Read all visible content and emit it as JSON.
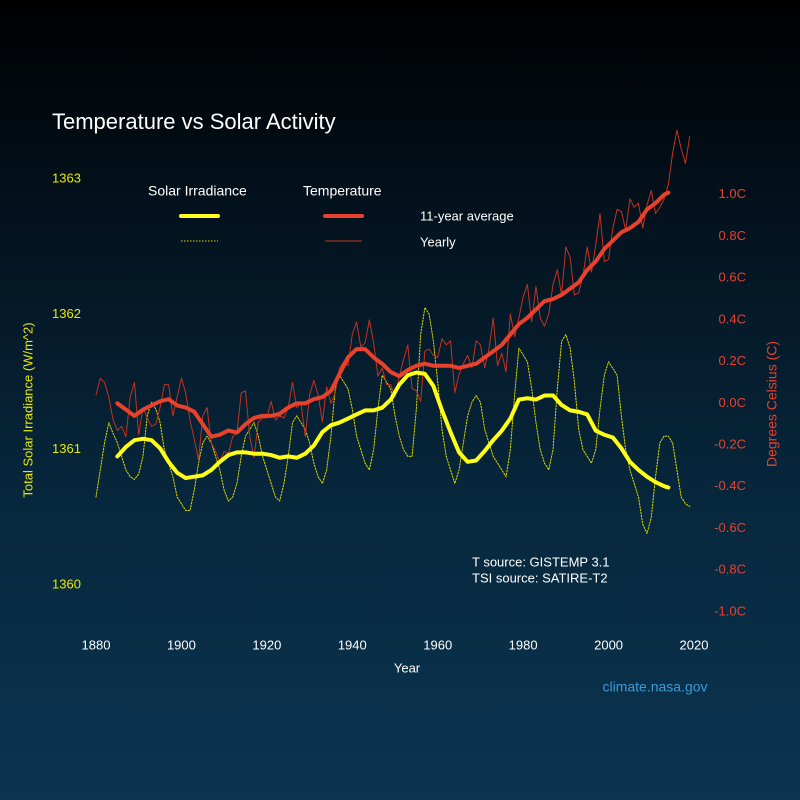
{
  "chart_data": {
    "type": "line",
    "title": "Temperature vs Solar Activity",
    "xlabel": "Year",
    "ylabel": "Total Solar Irradiance (W/m^2)",
    "y2label": "Degrees Celsius (C)",
    "annotations": [
      "T source: GISTEMP 3.1",
      "TSI source: SATIRE-T2",
      "climate.nasa.gov"
    ],
    "xlim": [
      1880,
      2020
    ],
    "xticks": [
      1880,
      1900,
      1920,
      1940,
      1960,
      1980,
      2000,
      2020
    ],
    "ylim": [
      1359.6,
      1363.3
    ],
    "yticks": [
      1360,
      1361,
      1362,
      1363
    ],
    "y2lim": [
      -1.13,
      1.27
    ],
    "y2ticks": [
      {
        "value": 1.0,
        "label": "1.0C"
      },
      {
        "value": 0.8,
        "label": "0.8C"
      },
      {
        "value": 0.6,
        "label": "0.6C"
      },
      {
        "value": 0.4,
        "label": "0.4C"
      },
      {
        "value": 0.2,
        "label": "0.2C"
      },
      {
        "value": 0.0,
        "label": "0.0C"
      },
      {
        "value": -0.2,
        "label": "-0.2C"
      },
      {
        "value": -0.4,
        "label": "-0.4C"
      },
      {
        "value": -0.6,
        "label": "-0.6C"
      },
      {
        "value": -0.8,
        "label": "-0.8C"
      },
      {
        "value": -1.0,
        "label": "-1.0C"
      }
    ],
    "ycolor": "#e8e800",
    "y2color": "#e8412c",
    "grid": false,
    "series": [
      {
        "name": "Solar Irradiance",
        "variant": "11-year average",
        "color": "#ffff1a",
        "width": 4,
        "dashed": false,
        "x": [
          1885,
          1887,
          1889,
          1891,
          1893,
          1895,
          1897,
          1899,
          1901,
          1903,
          1905,
          1907,
          1909,
          1911,
          1913,
          1915,
          1917,
          1919,
          1921,
          1923,
          1925,
          1927,
          1929,
          1931,
          1933,
          1935,
          1937,
          1939,
          1941,
          1943,
          1945,
          1947,
          1949,
          1951,
          1953,
          1955,
          1957,
          1959,
          1961,
          1963,
          1965,
          1967,
          1969,
          1971,
          1973,
          1975,
          1977,
          1979,
          1981,
          1983,
          1985,
          1987,
          1989,
          1991,
          1993,
          1995,
          1997,
          1999,
          2001,
          2003,
          2005,
          2007,
          2009,
          2011,
          2013,
          2014
        ],
        "values": [
          1360.95,
          1361.02,
          1361.07,
          1361.08,
          1361.07,
          1361.01,
          1360.91,
          1360.83,
          1360.79,
          1360.8,
          1360.81,
          1360.85,
          1360.91,
          1360.96,
          1360.98,
          1360.98,
          1360.97,
          1360.97,
          1360.96,
          1360.94,
          1360.95,
          1360.94,
          1360.97,
          1361.03,
          1361.13,
          1361.18,
          1361.2,
          1361.23,
          1361.26,
          1361.29,
          1361.29,
          1361.31,
          1361.37,
          1361.48,
          1361.55,
          1361.57,
          1361.56,
          1361.47,
          1361.29,
          1361.13,
          1360.98,
          1360.91,
          1360.92,
          1360.99,
          1361.07,
          1361.14,
          1361.23,
          1361.37,
          1361.38,
          1361.37,
          1361.4,
          1361.4,
          1361.33,
          1361.29,
          1361.28,
          1361.26,
          1361.14,
          1361.11,
          1361.09,
          1361.01,
          1360.91,
          1360.85,
          1360.8,
          1360.76,
          1360.73,
          1360.72
        ]
      },
      {
        "name": "Solar Irradiance",
        "variant": "Yearly",
        "color": "#d8d800",
        "width": 1,
        "dashed": true,
        "x": [
          1880,
          1881,
          1882,
          1883,
          1884,
          1885,
          1886,
          1887,
          1888,
          1889,
          1890,
          1891,
          1892,
          1893,
          1894,
          1895,
          1896,
          1897,
          1898,
          1899,
          1900,
          1901,
          1902,
          1903,
          1904,
          1905,
          1906,
          1907,
          1908,
          1909,
          1910,
          1911,
          1912,
          1913,
          1914,
          1915,
          1916,
          1917,
          1918,
          1919,
          1920,
          1921,
          1922,
          1923,
          1924,
          1925,
          1926,
          1927,
          1928,
          1929,
          1930,
          1931,
          1932,
          1933,
          1934,
          1935,
          1936,
          1937,
          1938,
          1939,
          1940,
          1941,
          1942,
          1943,
          1944,
          1945,
          1946,
          1947,
          1948,
          1949,
          1950,
          1951,
          1952,
          1953,
          1954,
          1955,
          1956,
          1957,
          1958,
          1959,
          1960,
          1961,
          1962,
          1963,
          1964,
          1965,
          1966,
          1967,
          1968,
          1969,
          1970,
          1971,
          1972,
          1973,
          1974,
          1975,
          1976,
          1977,
          1978,
          1979,
          1980,
          1981,
          1982,
          1983,
          1984,
          1985,
          1986,
          1987,
          1988,
          1989,
          1990,
          1991,
          1992,
          1993,
          1994,
          1995,
          1996,
          1997,
          1998,
          1999,
          2000,
          2001,
          2002,
          2003,
          2004,
          2005,
          2006,
          2007,
          2008,
          2009,
          2010,
          2011,
          2012,
          2013,
          2014,
          2015,
          2016,
          2017,
          2018,
          2019
        ],
        "values": [
          1360.65,
          1360.85,
          1361.05,
          1361.2,
          1361.12,
          1361.05,
          1360.95,
          1360.85,
          1360.8,
          1360.78,
          1360.82,
          1360.95,
          1361.25,
          1361.35,
          1361.3,
          1361.2,
          1361.0,
          1360.9,
          1360.8,
          1360.65,
          1360.6,
          1360.55,
          1360.55,
          1360.7,
          1360.9,
          1361.05,
          1361.1,
          1361.05,
          1360.95,
          1360.85,
          1360.7,
          1360.62,
          1360.65,
          1360.75,
          1360.95,
          1361.1,
          1361.15,
          1361.2,
          1361.1,
          1360.95,
          1360.85,
          1360.75,
          1360.65,
          1360.62,
          1360.75,
          1360.95,
          1361.2,
          1361.25,
          1361.2,
          1361.15,
          1361.05,
          1360.9,
          1360.8,
          1360.75,
          1360.85,
          1361.1,
          1361.45,
          1361.55,
          1361.5,
          1361.45,
          1361.3,
          1361.1,
          1361.0,
          1360.9,
          1360.85,
          1361.0,
          1361.3,
          1361.55,
          1361.5,
          1361.45,
          1361.25,
          1361.1,
          1361.0,
          1360.95,
          1360.95,
          1361.3,
          1361.85,
          1362.05,
          1362.0,
          1361.8,
          1361.5,
          1361.15,
          1360.95,
          1360.85,
          1360.75,
          1360.85,
          1361.05,
          1361.25,
          1361.35,
          1361.4,
          1361.35,
          1361.15,
          1361.05,
          1360.95,
          1360.9,
          1360.85,
          1360.8,
          1361.0,
          1361.4,
          1361.75,
          1361.7,
          1361.65,
          1361.45,
          1361.2,
          1361.0,
          1360.9,
          1360.85,
          1361.0,
          1361.45,
          1361.8,
          1361.85,
          1361.75,
          1361.5,
          1361.15,
          1361.0,
          1360.95,
          1360.9,
          1361.0,
          1361.3,
          1361.55,
          1361.65,
          1361.6,
          1361.55,
          1361.25,
          1361.0,
          1360.85,
          1360.75,
          1360.65,
          1360.45,
          1360.38,
          1360.5,
          1360.8,
          1361.05,
          1361.1,
          1361.1,
          1361.05,
          1360.85,
          1360.65,
          1360.6,
          1360.58
        ]
      },
      {
        "name": "Temperature",
        "variant": "11-year average",
        "color": "#e8412c",
        "width": 4,
        "dashed": false,
        "axis": "y2",
        "x": [
          1885,
          1887,
          1889,
          1891,
          1893,
          1895,
          1897,
          1899,
          1901,
          1903,
          1905,
          1907,
          1909,
          1911,
          1913,
          1915,
          1917,
          1919,
          1921,
          1923,
          1925,
          1927,
          1929,
          1931,
          1933,
          1935,
          1937,
          1939,
          1941,
          1943,
          1945,
          1947,
          1949,
          1951,
          1953,
          1955,
          1957,
          1959,
          1961,
          1963,
          1965,
          1967,
          1969,
          1971,
          1973,
          1975,
          1977,
          1979,
          1981,
          1983,
          1985,
          1987,
          1989,
          1991,
          1993,
          1995,
          1997,
          1999,
          2001,
          2003,
          2005,
          2007,
          2009,
          2011,
          2013,
          2014
        ],
        "values": [
          0.0,
          -0.03,
          -0.06,
          -0.03,
          -0.01,
          0.01,
          0.02,
          -0.01,
          -0.02,
          -0.04,
          -0.1,
          -0.16,
          -0.15,
          -0.13,
          -0.14,
          -0.1,
          -0.07,
          -0.06,
          -0.06,
          -0.05,
          -0.02,
          0.0,
          0.0,
          0.02,
          0.03,
          0.06,
          0.14,
          0.22,
          0.26,
          0.26,
          0.22,
          0.19,
          0.15,
          0.13,
          0.16,
          0.18,
          0.19,
          0.18,
          0.18,
          0.18,
          0.17,
          0.18,
          0.19,
          0.22,
          0.25,
          0.28,
          0.33,
          0.38,
          0.41,
          0.45,
          0.49,
          0.5,
          0.52,
          0.55,
          0.58,
          0.64,
          0.68,
          0.74,
          0.78,
          0.82,
          0.84,
          0.87,
          0.93,
          0.96,
          1.0,
          1.01
        ]
      },
      {
        "name": "Temperature",
        "variant": "Yearly",
        "color": "#c4321f",
        "width": 1,
        "dashed": false,
        "axis": "y2",
        "x": [
          1880,
          1881,
          1882,
          1883,
          1884,
          1885,
          1886,
          1887,
          1888,
          1889,
          1890,
          1891,
          1892,
          1893,
          1894,
          1895,
          1896,
          1897,
          1898,
          1899,
          1900,
          1901,
          1902,
          1903,
          1904,
          1905,
          1906,
          1907,
          1908,
          1909,
          1910,
          1911,
          1912,
          1913,
          1914,
          1915,
          1916,
          1917,
          1918,
          1919,
          1920,
          1921,
          1922,
          1923,
          1924,
          1925,
          1926,
          1927,
          1928,
          1929,
          1930,
          1931,
          1932,
          1933,
          1934,
          1935,
          1936,
          1937,
          1938,
          1939,
          1940,
          1941,
          1942,
          1943,
          1944,
          1945,
          1946,
          1947,
          1948,
          1949,
          1950,
          1951,
          1952,
          1953,
          1954,
          1955,
          1956,
          1957,
          1958,
          1959,
          1960,
          1961,
          1962,
          1963,
          1964,
          1965,
          1966,
          1967,
          1968,
          1969,
          1970,
          1971,
          1972,
          1973,
          1974,
          1975,
          1976,
          1977,
          1978,
          1979,
          1980,
          1981,
          1982,
          1983,
          1984,
          1985,
          1986,
          1987,
          1988,
          1989,
          1990,
          1991,
          1992,
          1993,
          1994,
          1995,
          1996,
          1997,
          1998,
          1999,
          2000,
          2001,
          2002,
          2003,
          2004,
          2005,
          2006,
          2007,
          2008,
          2009,
          2010,
          2011,
          2012,
          2013,
          2014,
          2015,
          2016,
          2017,
          2018,
          2019
        ],
        "values": [
          0.04,
          0.12,
          0.1,
          0.03,
          -0.08,
          -0.13,
          -0.11,
          -0.16,
          0.03,
          0.1,
          -0.15,
          -0.02,
          -0.07,
          -0.11,
          -0.1,
          -0.02,
          0.09,
          0.09,
          -0.06,
          0.03,
          0.12,
          0.05,
          -0.08,
          -0.17,
          -0.27,
          -0.06,
          -0.02,
          -0.19,
          -0.23,
          -0.28,
          -0.23,
          -0.24,
          -0.16,
          -0.14,
          0.05,
          0.06,
          -0.16,
          -0.26,
          -0.09,
          -0.07,
          -0.07,
          0.01,
          -0.08,
          -0.06,
          -0.07,
          -0.02,
          0.1,
          -0.02,
          0.0,
          -0.16,
          0.04,
          0.11,
          0.04,
          -0.09,
          0.08,
          0.0,
          0.05,
          0.17,
          0.2,
          0.18,
          0.33,
          0.39,
          0.27,
          0.29,
          0.4,
          0.29,
          0.13,
          0.17,
          0.09,
          0.09,
          0.03,
          0.13,
          0.21,
          0.28,
          0.07,
          0.06,
          0.01,
          0.25,
          0.26,
          0.23,
          0.22,
          0.31,
          0.28,
          0.3,
          0.05,
          0.14,
          0.19,
          0.23,
          0.17,
          0.3,
          0.28,
          0.17,
          0.26,
          0.41,
          0.18,
          0.24,
          0.15,
          0.43,
          0.32,
          0.41,
          0.51,
          0.57,
          0.39,
          0.56,
          0.41,
          0.37,
          0.43,
          0.57,
          0.64,
          0.52,
          0.75,
          0.7,
          0.52,
          0.53,
          0.61,
          0.75,
          0.63,
          0.76,
          0.91,
          0.68,
          0.69,
          0.84,
          0.93,
          0.92,
          0.83,
          0.98,
          0.94,
          0.96,
          0.84,
          0.95,
          1.02,
          0.91,
          0.94,
          0.98,
          1.05,
          1.2,
          1.31,
          1.22,
          1.15,
          1.28
        ]
      }
    ]
  }
}
